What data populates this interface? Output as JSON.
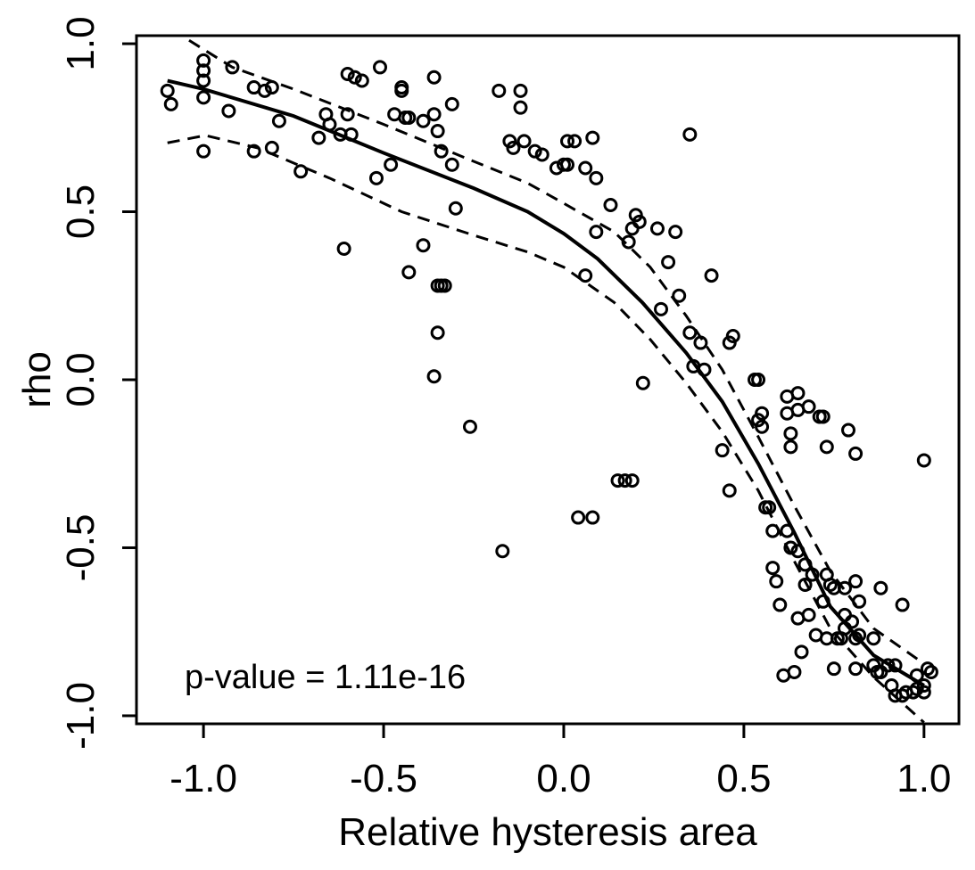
{
  "chart_data": {
    "type": "scatter",
    "xlabel": "Relative hysteresis area",
    "ylabel": "rho",
    "annotation": "p-value =  1.11e-16",
    "xlim": [
      -1.186,
      1.097
    ],
    "ylim": [
      -1.024,
      1.024
    ],
    "xticks": [
      {
        "value": -1,
        "label": "-1.0"
      },
      -0.5,
      {
        "value": 0,
        "label": "0.0"
      },
      0.5,
      {
        "value": 1,
        "label": "1.0"
      }
    ],
    "yticks": [
      {
        "value": -1,
        "label": "-1.0"
      },
      -0.5,
      {
        "value": 0,
        "label": "0.0"
      },
      0.5,
      {
        "value": 1,
        "label": "1.0"
      }
    ],
    "series": [
      {
        "color": "#000000",
        "marker": "circle",
        "line": "none",
        "x": [
          -1.1,
          -1.09,
          -1.0,
          -1.0,
          -1.0,
          -1.0,
          -1.0,
          -0.92,
          -0.93,
          -0.86,
          -0.83,
          -0.81,
          -0.79,
          -0.86,
          -0.81,
          -0.73,
          -0.68,
          -0.66,
          -0.65,
          -0.62,
          -0.6,
          -0.58,
          -0.56,
          -0.6,
          -0.59,
          -0.61,
          -0.51,
          -0.52,
          -0.48,
          -0.47,
          -0.45,
          -0.45,
          -0.44,
          -0.43,
          -0.39,
          -0.36,
          -0.36,
          -0.35,
          -0.34,
          -0.31,
          -0.31,
          -0.3,
          -0.39,
          -0.43,
          -0.35,
          -0.34,
          -0.33,
          -0.35,
          -0.36,
          -0.26,
          -0.17,
          -0.18,
          -0.12,
          -0.12,
          -0.15,
          -0.14,
          -0.11,
          -0.08,
          -0.06,
          -0.02,
          0.0,
          0.01,
          0.01,
          0.03,
          0.06,
          0.08,
          0.09,
          0.09,
          0.06,
          0.04,
          0.08,
          0.13,
          0.15,
          0.17,
          0.19,
          0.18,
          0.2,
          0.21,
          0.19,
          0.22,
          0.26,
          0.27,
          0.29,
          0.31,
          0.32,
          0.35,
          0.35,
          0.36,
          0.38,
          0.39,
          0.41,
          0.44,
          0.46,
          0.47,
          0.46,
          0.53,
          0.54,
          0.54,
          0.55,
          0.55,
          0.56,
          0.57,
          0.58,
          0.58,
          0.59,
          0.6,
          0.61,
          0.62,
          0.63,
          0.62,
          0.62,
          0.63,
          0.63,
          0.64,
          0.65,
          0.65,
          0.65,
          0.66,
          0.65,
          0.67,
          0.67,
          0.69,
          0.68,
          0.68,
          0.71,
          0.72,
          0.7,
          0.73,
          0.73,
          0.72,
          0.73,
          0.74,
          0.75,
          0.75,
          0.76,
          0.77,
          0.78,
          0.78,
          0.78,
          0.79,
          0.8,
          0.81,
          0.81,
          0.82,
          0.81,
          0.82,
          0.81,
          0.86,
          0.88,
          0.86,
          0.87,
          0.88,
          0.9,
          0.91,
          0.92,
          0.92,
          0.94,
          0.94,
          0.95,
          0.97,
          0.98,
          0.98,
          1.0,
          1.0,
          1.01,
          1.02,
          1.0
        ],
        "values": [
          0.86,
          0.82,
          0.95,
          0.92,
          0.89,
          0.84,
          0.68,
          0.93,
          0.8,
          0.87,
          0.86,
          0.87,
          0.77,
          0.68,
          0.69,
          0.62,
          0.72,
          0.79,
          0.76,
          0.73,
          0.91,
          0.9,
          0.89,
          0.79,
          0.73,
          0.39,
          0.93,
          0.6,
          0.64,
          0.79,
          0.87,
          0.86,
          0.78,
          0.78,
          0.77,
          0.9,
          0.79,
          0.74,
          0.68,
          0.64,
          0.82,
          0.51,
          0.4,
          0.32,
          0.28,
          0.28,
          0.28,
          0.14,
          0.01,
          -0.14,
          -0.51,
          0.86,
          0.86,
          0.81,
          0.71,
          0.69,
          0.71,
          0.68,
          0.67,
          0.63,
          0.64,
          0.64,
          0.71,
          0.71,
          0.63,
          0.72,
          0.6,
          0.44,
          0.31,
          -0.41,
          -0.41,
          0.52,
          -0.3,
          -0.3,
          -0.3,
          0.41,
          0.49,
          0.47,
          0.45,
          -0.01,
          0.45,
          0.21,
          0.35,
          0.44,
          0.25,
          0.73,
          0.14,
          0.04,
          0.11,
          0.03,
          0.31,
          -0.21,
          0.11,
          0.13,
          -0.33,
          0.0,
          0.0,
          -0.12,
          -0.14,
          -0.1,
          -0.38,
          -0.38,
          -0.45,
          -0.56,
          -0.6,
          -0.67,
          -0.88,
          -0.45,
          -0.5,
          -0.05,
          -0.1,
          -0.16,
          -0.2,
          -0.87,
          -0.51,
          -0.04,
          -0.09,
          -0.81,
          -0.71,
          -0.55,
          -0.61,
          -0.58,
          -0.7,
          -0.08,
          -0.11,
          -0.11,
          -0.76,
          -0.77,
          -0.58,
          -0.66,
          -0.2,
          -0.61,
          -0.62,
          -0.86,
          -0.77,
          -0.77,
          -0.74,
          -0.7,
          -0.62,
          -0.15,
          -0.72,
          -0.77,
          -0.6,
          -0.76,
          -0.22,
          -0.66,
          -0.86,
          -0.77,
          -0.62,
          -0.85,
          -0.87,
          -0.87,
          -0.85,
          -0.91,
          -0.85,
          -0.94,
          -0.94,
          -0.67,
          -0.93,
          -0.93,
          -0.92,
          -0.88,
          -0.91,
          -0.93,
          -0.86,
          -0.87,
          -0.24
        ]
      },
      {
        "color": "#000000",
        "marker": "none",
        "line": "solid",
        "x": [
          -1.1,
          -1.0,
          -0.75,
          -0.5,
          -0.25,
          -0.1,
          0.0,
          0.094,
          0.218,
          0.34,
          0.44,
          0.54,
          0.64,
          0.74,
          0.86,
          1.0
        ],
        "values": [
          0.89,
          0.865,
          0.785,
          0.675,
          0.57,
          0.5,
          0.435,
          0.36,
          0.23,
          0.08,
          -0.065,
          -0.25,
          -0.455,
          -0.675,
          -0.82,
          -0.91
        ]
      },
      {
        "color": "#000000",
        "marker": "none",
        "line": "dashed",
        "x": [
          -1.04,
          -0.92,
          -0.75,
          -0.5,
          -0.25,
          -0.1,
          0.0,
          0.14,
          0.24,
          0.34,
          0.44,
          0.54,
          0.64,
          0.74,
          0.86,
          1.0
        ],
        "values": [
          1.01,
          0.93,
          0.865,
          0.76,
          0.65,
          0.585,
          0.525,
          0.44,
          0.335,
          0.19,
          0.03,
          -0.17,
          -0.375,
          -0.57,
          -0.74,
          -0.845
        ]
      },
      {
        "color": "#000000",
        "marker": "none",
        "line": "dashed",
        "x": [
          -1.1,
          -0.995,
          -0.85,
          -0.65,
          -0.45,
          -0.25,
          -0.1,
          0.0,
          0.14,
          0.24,
          0.34,
          0.44,
          0.54,
          0.64,
          0.74,
          0.86,
          1.0
        ],
        "values": [
          0.705,
          0.727,
          0.69,
          0.6,
          0.5,
          0.43,
          0.38,
          0.335,
          0.23,
          0.12,
          -0.01,
          -0.155,
          -0.33,
          -0.54,
          -0.74,
          -0.885,
          -1.02
        ]
      }
    ]
  }
}
